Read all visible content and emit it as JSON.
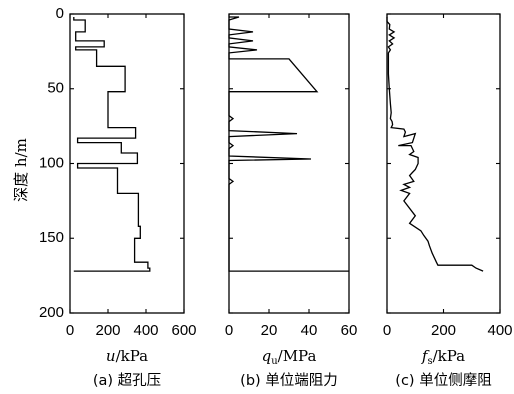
{
  "depth_axis": {
    "label": "深度 h/m",
    "ticks": [
      "0",
      "50",
      "100",
      "150",
      "200"
    ],
    "range": [
      0,
      200
    ]
  },
  "chart_data": [
    {
      "type": "line",
      "panel": "a",
      "caption": "(a) 超孔压",
      "xlabel": "u/kPa",
      "xlabel_var": "u",
      "xlabel_unit": "/kPa",
      "xlim": [
        0,
        600
      ],
      "xticks": [
        "0",
        "200",
        "400",
        "600"
      ],
      "ylabel": "深度 h/m",
      "ylim": [
        0,
        200
      ],
      "series": [
        {
          "x": [
            20,
            20,
            80,
            80,
            30,
            30,
            180,
            180,
            30,
            30,
            140,
            140,
            290,
            290,
            200,
            200,
            345,
            345,
            40,
            40,
            270,
            270,
            355,
            355,
            40,
            40,
            250,
            250,
            360,
            360,
            370,
            370,
            340,
            340,
            410,
            410,
            420,
            420,
            20
          ],
          "y": [
            2,
            4,
            4,
            12,
            12,
            18,
            18,
            22,
            22,
            24,
            24,
            35,
            35,
            52,
            52,
            76,
            76,
            83,
            83,
            86,
            86,
            93,
            93,
            100,
            100,
            103,
            103,
            120,
            120,
            142,
            142,
            150,
            150,
            166,
            166,
            170,
            170,
            172,
            172
          ]
        }
      ]
    },
    {
      "type": "line",
      "panel": "b",
      "caption": "(b) 单位端阻力",
      "xlabel": "qu/MPa",
      "xlabel_var": "q",
      "xlabel_sub": "u",
      "xlabel_unit": "/MPa",
      "xlim": [
        0,
        60
      ],
      "xticks": [
        "0",
        "20",
        "40",
        "60"
      ],
      "ylabel": "深度 h/m",
      "ylim": [
        0,
        200
      ],
      "series": [
        {
          "x": [
            0,
            5,
            0,
            0,
            0,
            12,
            0,
            0,
            0,
            12,
            0,
            0,
            0,
            14,
            0,
            0,
            0,
            30,
            44,
            0,
            0,
            0,
            2,
            0,
            0,
            0,
            34,
            0,
            0,
            0,
            2,
            0,
            0,
            41,
            0,
            0,
            0,
            2,
            0,
            0,
            0,
            60
          ],
          "y": [
            2,
            2,
            4,
            10,
            10,
            12,
            14,
            16,
            16,
            18,
            20,
            22,
            22,
            24,
            26,
            30,
            30,
            30,
            52,
            52,
            54,
            68,
            70,
            72,
            76,
            78,
            80,
            82,
            84,
            86,
            88,
            90,
            95,
            97,
            98,
            100,
            110,
            112,
            114,
            118,
            172,
            172
          ]
        }
      ]
    },
    {
      "type": "line",
      "panel": "c",
      "caption": "(c) 单位侧摩阻",
      "xlabel": "fs/kPa",
      "xlabel_var": "f",
      "xlabel_sub": "s",
      "xlabel_unit": "/kPa",
      "xlim": [
        0,
        400
      ],
      "xticks": [
        "0",
        "200",
        "400"
      ],
      "ylabel": "深度 h/m",
      "ylim": [
        0,
        200
      ],
      "series": [
        {
          "x": [
            0,
            0,
            10,
            8,
            25,
            8,
            25,
            8,
            20,
            5,
            12,
            5,
            5,
            8,
            12,
            15,
            12,
            18,
            20,
            15,
            60,
            65,
            60,
            100,
            90,
            40,
            85,
            95,
            80,
            110,
            110,
            100,
            90,
            80,
            95,
            60,
            80,
            50,
            80,
            60,
            100,
            80,
            120,
            130,
            145,
            150,
            160,
            170,
            175,
            180,
            300,
            315,
            340
          ],
          "y": [
            2,
            5,
            7,
            10,
            12,
            14,
            16,
            18,
            20,
            22,
            24,
            26,
            40,
            50,
            60,
            66,
            70,
            72,
            74,
            76,
            77,
            79,
            82,
            80,
            86,
            88,
            88,
            92,
            94,
            96,
            100,
            104,
            106,
            108,
            112,
            114,
            116,
            118,
            120,
            125,
            135,
            140,
            145,
            148,
            152,
            155,
            160,
            164,
            166,
            168,
            168,
            170,
            172
          ]
        }
      ]
    }
  ]
}
